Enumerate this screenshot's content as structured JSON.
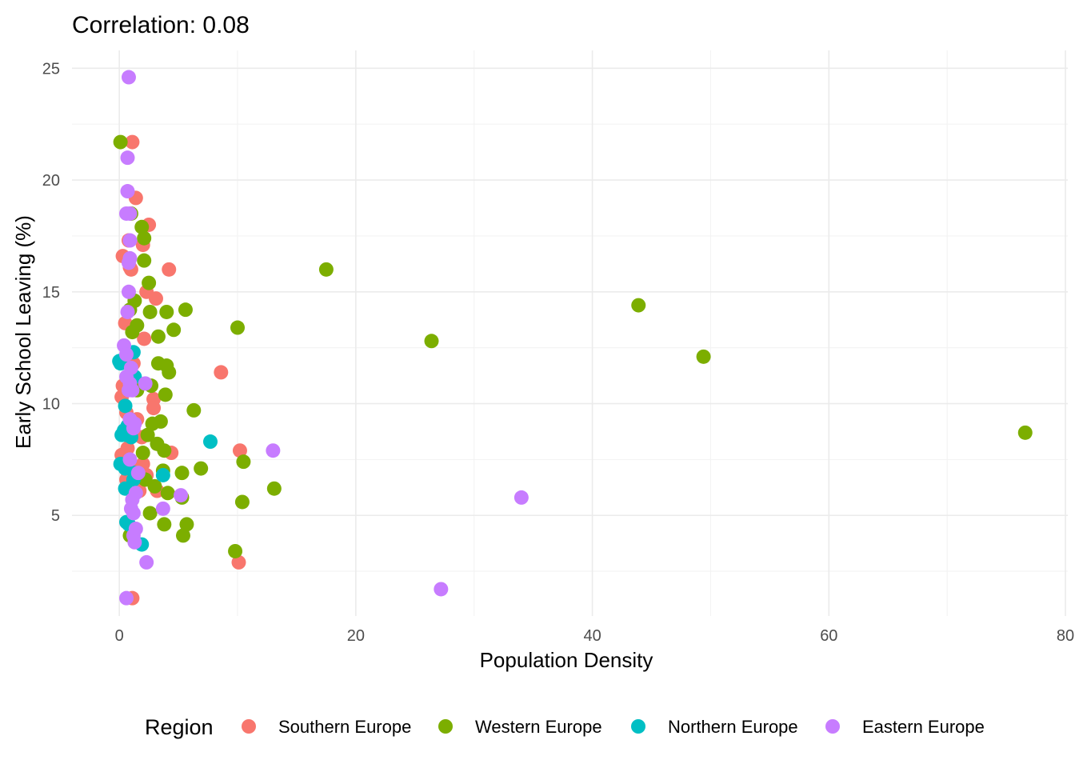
{
  "chart_data": {
    "type": "scatter",
    "title": "Correlation:  0.08",
    "xlabel": "Population Density",
    "ylabel": "Early School Leaving (%)",
    "xlim": [
      -4,
      80.2
    ],
    "ylim": [
      0.5,
      25.8
    ],
    "x_ticks": [
      "0",
      "20",
      "40",
      "60",
      "80"
    ],
    "y_ticks": [
      "5",
      "10",
      "15",
      "20",
      "25"
    ],
    "grid": true,
    "legend": {
      "title": "Region",
      "position": "bottom"
    },
    "series": [
      {
        "name": "Southern Europe",
        "color": "#F8766D",
        "points": [
          [
            1.1,
            21.7
          ],
          [
            1.4,
            19.2
          ],
          [
            2.5,
            18.0
          ],
          [
            2.0,
            17.1
          ],
          [
            0.8,
            17.3
          ],
          [
            0.3,
            16.6
          ],
          [
            0.9,
            16.1
          ],
          [
            1.0,
            16.0
          ],
          [
            4.2,
            16.0
          ],
          [
            2.3,
            15.0
          ],
          [
            3.1,
            14.7
          ],
          [
            2.1,
            12.9
          ],
          [
            0.5,
            13.6
          ],
          [
            1.2,
            11.8
          ],
          [
            8.6,
            11.4
          ],
          [
            2.9,
            10.2
          ],
          [
            2.9,
            9.8
          ],
          [
            0.3,
            10.8
          ],
          [
            0.2,
            10.3
          ],
          [
            0.6,
            9.6
          ],
          [
            1.5,
            9.3
          ],
          [
            1.0,
            8.8
          ],
          [
            1.9,
            8.5
          ],
          [
            4.4,
            7.8
          ],
          [
            10.2,
            7.9
          ],
          [
            0.7,
            8.0
          ],
          [
            0.2,
            7.7
          ],
          [
            0.5,
            7.4
          ],
          [
            2.0,
            7.3
          ],
          [
            1.3,
            7.0
          ],
          [
            2.3,
            6.8
          ],
          [
            0.6,
            6.6
          ],
          [
            1.7,
            6.1
          ],
          [
            3.2,
            6.1
          ],
          [
            1.1,
            1.3
          ],
          [
            10.1,
            2.9
          ]
        ]
      },
      {
        "name": "Western Europe",
        "color": "#7CAE00",
        "points": [
          [
            0.1,
            21.7
          ],
          [
            1.9,
            17.9
          ],
          [
            1.0,
            18.5
          ],
          [
            2.1,
            17.4
          ],
          [
            2.1,
            16.4
          ],
          [
            17.5,
            16.0
          ],
          [
            2.5,
            15.4
          ],
          [
            1.3,
            14.6
          ],
          [
            2.6,
            14.1
          ],
          [
            4.0,
            14.1
          ],
          [
            5.6,
            14.2
          ],
          [
            1.5,
            13.5
          ],
          [
            0.9,
            14.2
          ],
          [
            1.1,
            13.2
          ],
          [
            4.6,
            13.3
          ],
          [
            10.0,
            13.4
          ],
          [
            3.3,
            13.0
          ],
          [
            26.4,
            12.8
          ],
          [
            43.9,
            14.4
          ],
          [
            49.4,
            12.1
          ],
          [
            3.3,
            11.8
          ],
          [
            4.0,
            11.7
          ],
          [
            4.2,
            11.4
          ],
          [
            2.7,
            10.8
          ],
          [
            1.5,
            10.6
          ],
          [
            3.9,
            10.4
          ],
          [
            6.3,
            9.7
          ],
          [
            2.8,
            9.1
          ],
          [
            3.5,
            9.2
          ],
          [
            2.4,
            8.6
          ],
          [
            3.2,
            8.2
          ],
          [
            3.8,
            7.9
          ],
          [
            2.0,
            7.8
          ],
          [
            10.5,
            7.4
          ],
          [
            6.9,
            7.1
          ],
          [
            3.7,
            7.0
          ],
          [
            5.3,
            6.9
          ],
          [
            2.2,
            6.6
          ],
          [
            4.1,
            6.0
          ],
          [
            3.0,
            6.3
          ],
          [
            5.3,
            5.8
          ],
          [
            13.1,
            6.2
          ],
          [
            10.4,
            5.6
          ],
          [
            2.6,
            5.1
          ],
          [
            3.8,
            4.6
          ],
          [
            5.7,
            4.6
          ],
          [
            5.4,
            4.1
          ],
          [
            0.9,
            4.1
          ],
          [
            9.8,
            3.4
          ],
          [
            76.6,
            8.7
          ]
        ]
      },
      {
        "name": "Northern Europe",
        "color": "#00BFC4",
        "points": [
          [
            0.0,
            11.9
          ],
          [
            0.1,
            11.8
          ],
          [
            1.2,
            12.3
          ],
          [
            1.3,
            11.2
          ],
          [
            0.5,
            9.9
          ],
          [
            0.7,
            9.0
          ],
          [
            0.2,
            8.6
          ],
          [
            0.4,
            8.8
          ],
          [
            0.6,
            8.6
          ],
          [
            1.0,
            8.5
          ],
          [
            7.7,
            8.3
          ],
          [
            0.1,
            7.3
          ],
          [
            0.5,
            7.1
          ],
          [
            1.3,
            6.9
          ],
          [
            3.7,
            6.8
          ],
          [
            1.2,
            6.6
          ],
          [
            0.5,
            6.2
          ],
          [
            0.6,
            4.7
          ],
          [
            0.8,
            4.6
          ],
          [
            1.9,
            3.7
          ]
        ]
      },
      {
        "name": "Eastern Europe",
        "color": "#C77CFF",
        "points": [
          [
            0.8,
            24.6
          ],
          [
            0.7,
            21.0
          ],
          [
            0.7,
            19.5
          ],
          [
            0.6,
            18.5
          ],
          [
            0.9,
            18.5
          ],
          [
            0.9,
            17.3
          ],
          [
            0.9,
            16.5
          ],
          [
            0.8,
            16.3
          ],
          [
            0.8,
            15.0
          ],
          [
            0.7,
            14.1
          ],
          [
            0.4,
            12.6
          ],
          [
            0.6,
            12.2
          ],
          [
            0.6,
            11.2
          ],
          [
            1.0,
            11.6
          ],
          [
            0.9,
            10.9
          ],
          [
            2.2,
            10.9
          ],
          [
            0.8,
            10.6
          ],
          [
            1.1,
            10.6
          ],
          [
            0.9,
            9.3
          ],
          [
            1.2,
            8.9
          ],
          [
            1.3,
            9.1
          ],
          [
            13.0,
            7.9
          ],
          [
            0.9,
            7.5
          ],
          [
            1.6,
            6.9
          ],
          [
            1.4,
            6.0
          ],
          [
            5.2,
            5.9
          ],
          [
            1.1,
            5.7
          ],
          [
            1.0,
            5.3
          ],
          [
            3.7,
            5.3
          ],
          [
            1.2,
            5.1
          ],
          [
            34.0,
            5.8
          ],
          [
            1.4,
            4.4
          ],
          [
            1.2,
            4.1
          ],
          [
            1.3,
            3.8
          ],
          [
            2.3,
            2.9
          ],
          [
            27.2,
            1.7
          ],
          [
            0.6,
            1.3
          ]
        ]
      }
    ]
  }
}
